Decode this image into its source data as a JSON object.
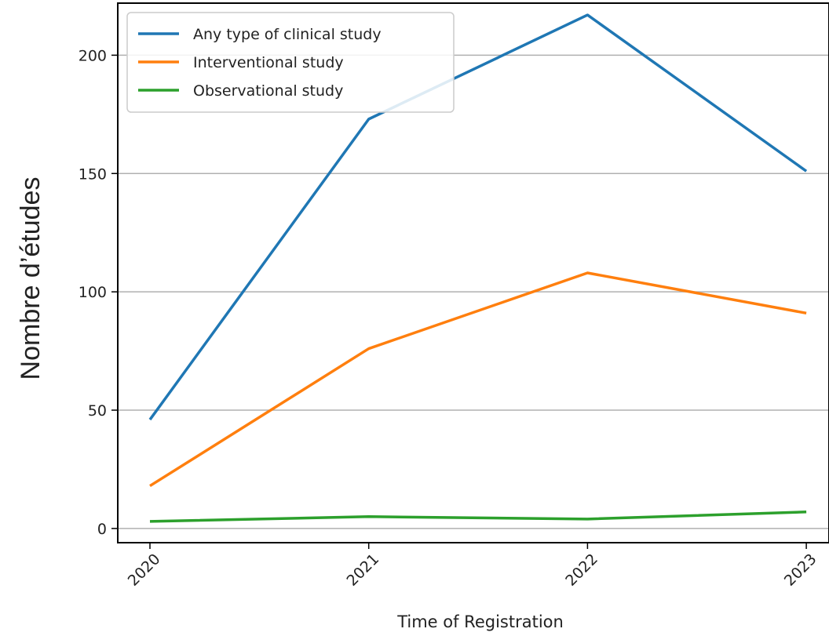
{
  "chart_data": {
    "type": "line",
    "title": "",
    "xlabel": "Time of Registration",
    "ylabel": "Nombre d’études",
    "categories": [
      "2020",
      "2021",
      "2022",
      "2023"
    ],
    "ylim": [
      -6,
      222
    ],
    "yticks": [
      0,
      50,
      100,
      150,
      200
    ],
    "grid": "horizontal",
    "legend_position": "top-left",
    "series": [
      {
        "name": "Any type of clinical study",
        "color": "#1f77b4",
        "values": [
          46,
          173,
          217,
          151
        ]
      },
      {
        "name": "Interventional study",
        "color": "#ff7f0e",
        "values": [
          18,
          76,
          108,
          91
        ]
      },
      {
        "name": "Observational study",
        "color": "#2ca02c",
        "values": [
          3,
          5,
          4,
          7
        ]
      }
    ]
  }
}
